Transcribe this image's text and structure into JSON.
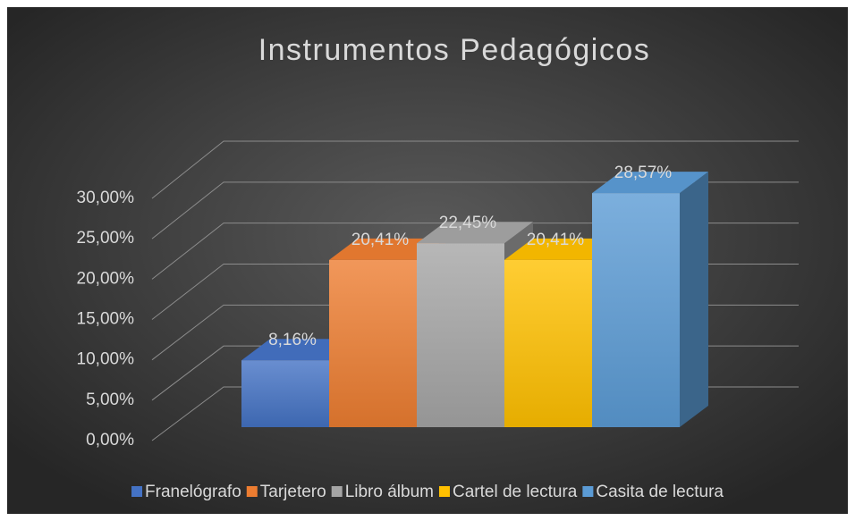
{
  "chart_data": {
    "type": "bar3d",
    "title": "Instrumentos Pedagógicos",
    "categories": [
      "Franelógrafo",
      "Tarjetero",
      "Libro álbum",
      "Cartel de lectura",
      "Casita de lectura"
    ],
    "values": [
      8.16,
      20.41,
      22.45,
      20.41,
      28.57
    ],
    "value_labels": [
      "8,16%",
      "20,41%",
      "22,45%",
      "20,41%",
      "28,57%"
    ],
    "colors": [
      "#4472c4",
      "#ed7d31",
      "#a5a5a5",
      "#ffc000",
      "#5b9bd5"
    ],
    "ylim": [
      0,
      30
    ],
    "yticks": [
      {
        "value": 0,
        "label": "0,00%"
      },
      {
        "value": 5,
        "label": "5,00%"
      },
      {
        "value": 10,
        "label": "10,00%"
      },
      {
        "value": 15,
        "label": "15,00%"
      },
      {
        "value": 20,
        "label": "20,00%"
      },
      {
        "value": 25,
        "label": "25,00%"
      },
      {
        "value": 30,
        "label": "30,00%"
      }
    ],
    "grid": true,
    "legend": "bottom"
  }
}
